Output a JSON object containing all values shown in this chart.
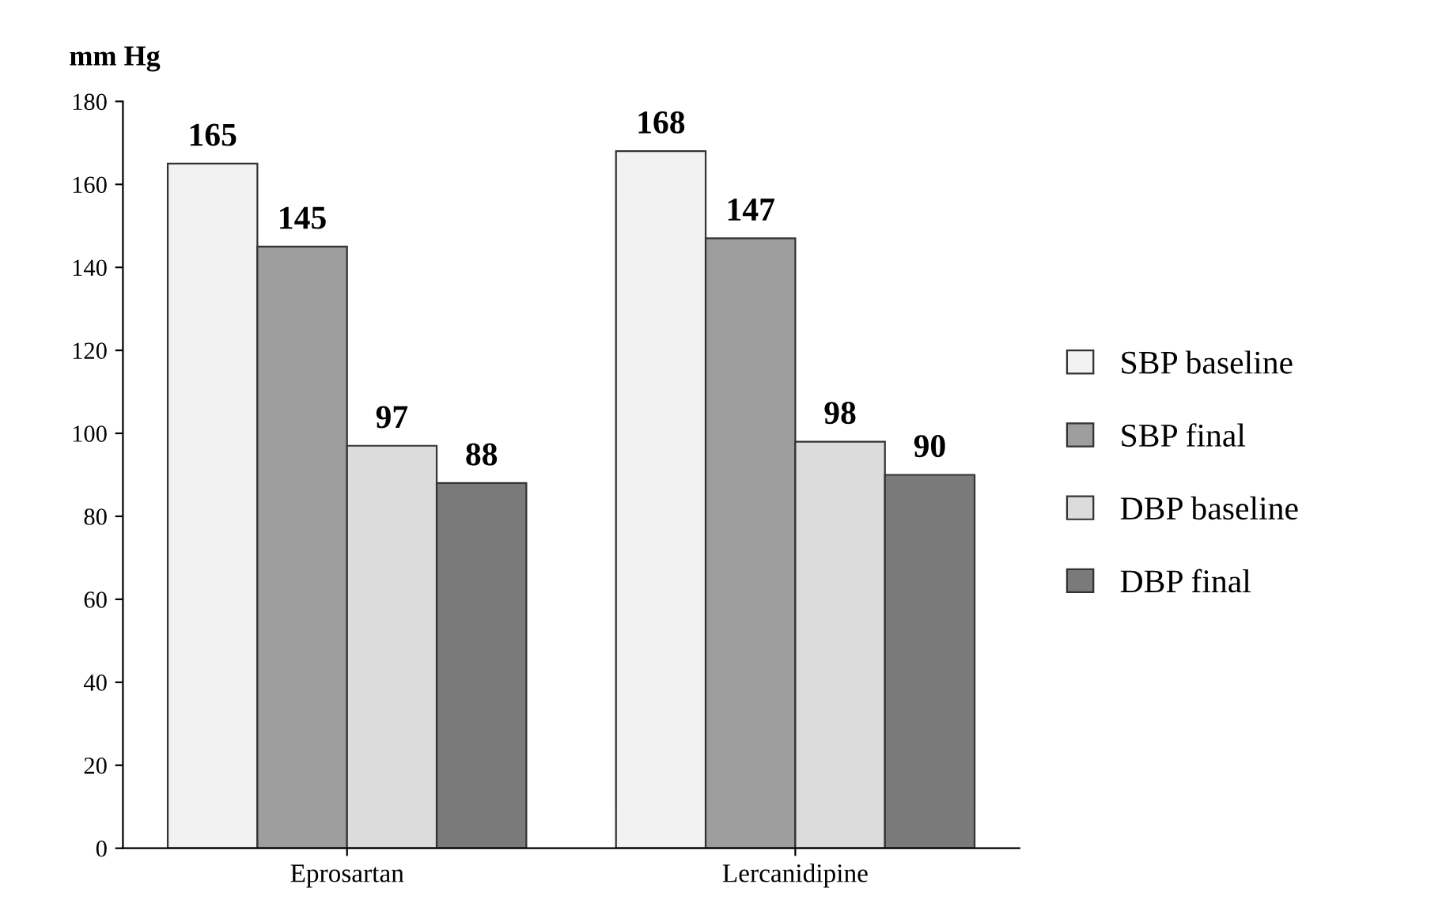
{
  "chart_data": {
    "type": "bar",
    "ylabel": "mm Hg",
    "categories": [
      "Eprosartan",
      "Lercanidipine"
    ],
    "series": [
      {
        "name": "SBP baseline",
        "color": "#f2f2f2",
        "values": [
          165,
          168
        ]
      },
      {
        "name": "SBP final",
        "color": "#9e9e9e",
        "values": [
          145,
          147
        ]
      },
      {
        "name": "DBP baseline",
        "color": "#dcdcdc",
        "values": [
          97,
          98
        ]
      },
      {
        "name": "DBP final",
        "color": "#7a7a7a",
        "values": [
          88,
          90
        ]
      }
    ],
    "ylim": [
      0,
      180
    ],
    "yticks": [
      0,
      20,
      40,
      60,
      80,
      100,
      120,
      140,
      160,
      180
    ],
    "grid": false,
    "legend": "right",
    "data_labels": true
  }
}
